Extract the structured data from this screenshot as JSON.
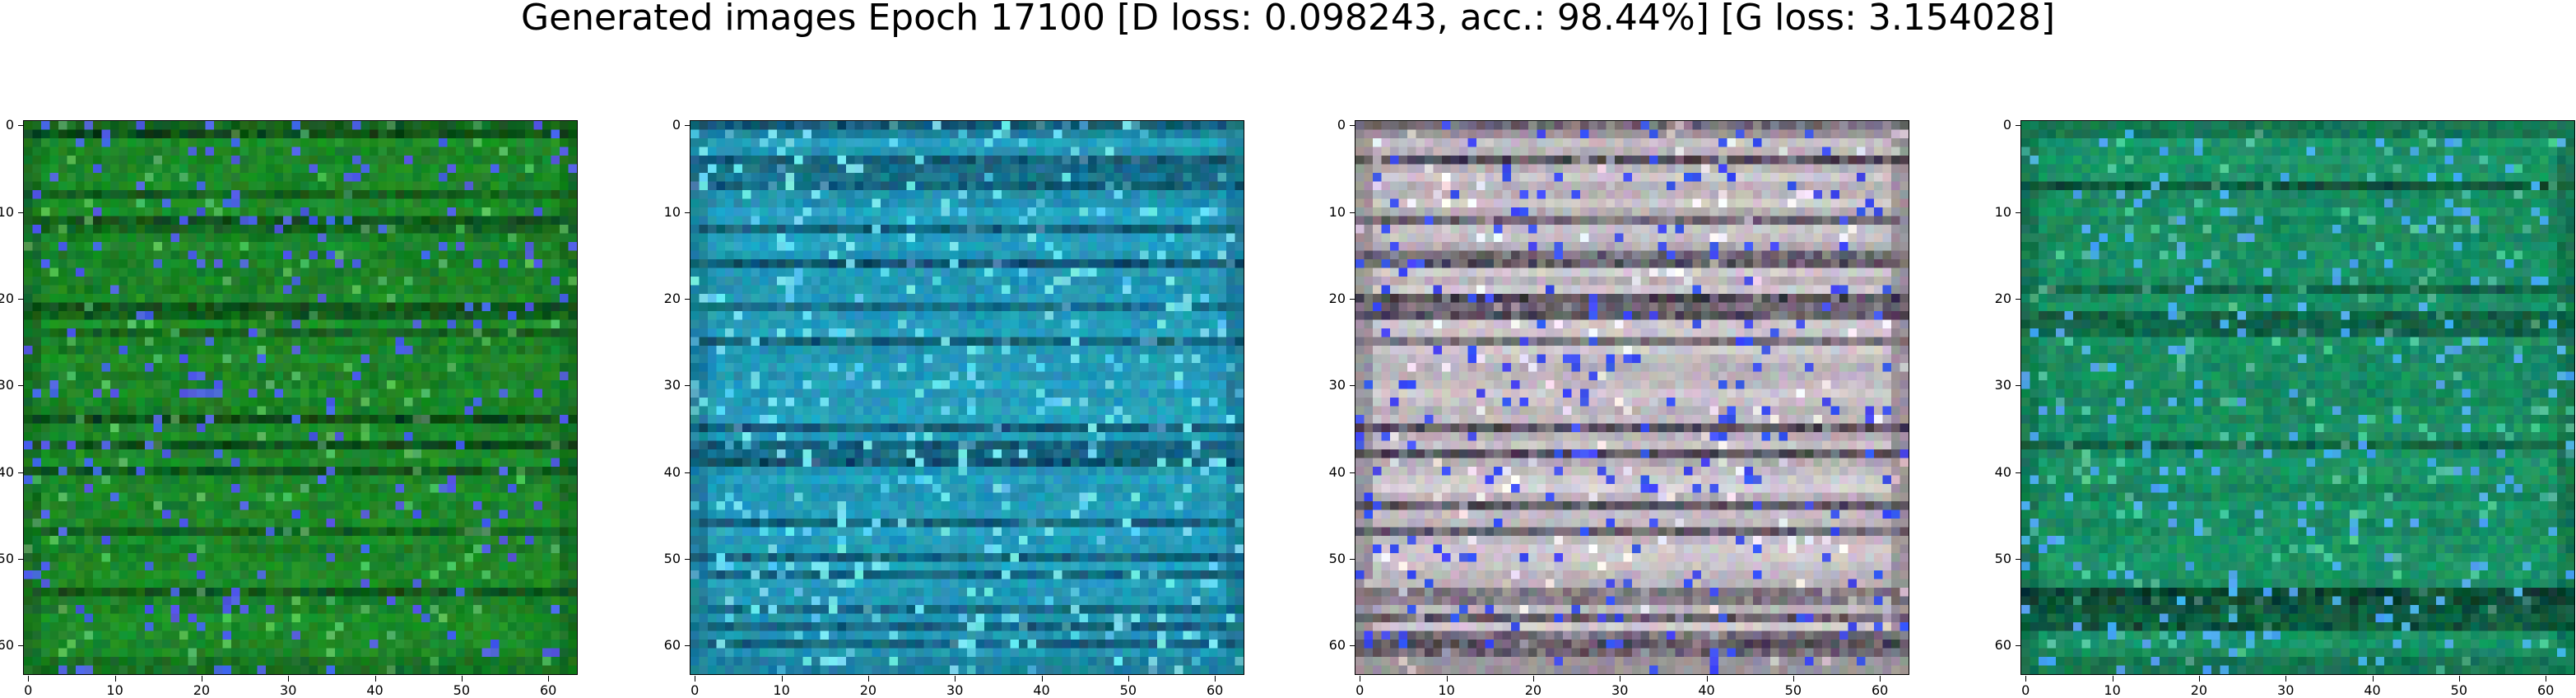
{
  "figure": {
    "title": "Generated images Epoch 17100 [D loss: 0.098243, acc.: 98.44%] [G loss: 3.154028]"
  },
  "axes": {
    "x_ticks": [
      "0",
      "10",
      "20",
      "30",
      "40",
      "50",
      "60"
    ],
    "y_ticks": [
      "0",
      "10",
      "20",
      "30",
      "40",
      "50",
      "60"
    ],
    "image_size": 64
  },
  "panels": [
    {
      "id": "panel-1",
      "base_color": "#1f8f2a",
      "stripe_color": "#0a3a14",
      "accent_color": "#4a5fe0"
    },
    {
      "id": "panel-2",
      "base_color": "#26a6c4",
      "stripe_color": "#0b3d55",
      "accent_color": "#6fe0ea"
    },
    {
      "id": "panel-3",
      "base_color": "#d6cfd4",
      "stripe_color": "#2a2230",
      "accent_color": "#3d4ff0"
    },
    {
      "id": "panel-4",
      "base_color": "#1c9a6a",
      "stripe_color": "#083525",
      "accent_color": "#4aa8ea"
    }
  ]
}
